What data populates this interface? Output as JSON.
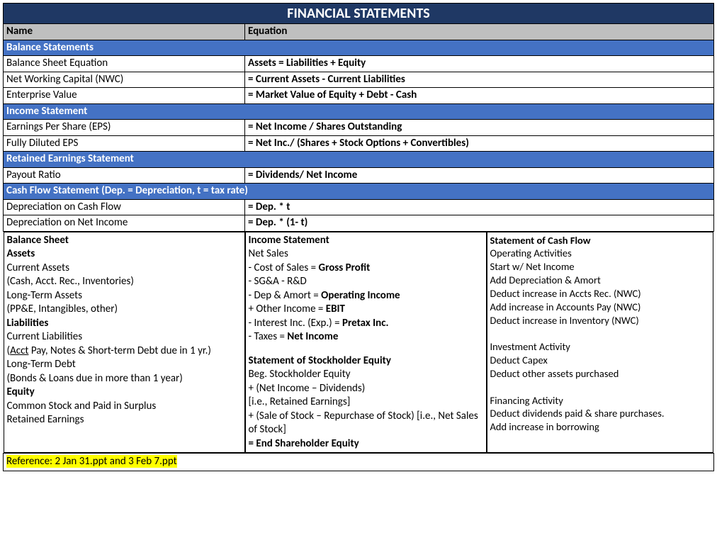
{
  "colors": {
    "title_bg": "#1f3864",
    "header_bg": "#bfbfbf",
    "section_bg": "#4472c4",
    "highlight_bg": "#ffff00",
    "border": "#000000",
    "text_light": "#ffffff",
    "text_dark": "#000000"
  },
  "title": "FINANCIAL STATEMENTS",
  "columns": {
    "name": "Name",
    "equation": "Equation"
  },
  "sections": [
    {
      "heading": "Balance Statements",
      "rows": [
        {
          "name": "Balance Sheet Equation",
          "equation": "Assets = Liabilities + Equity"
        },
        {
          "name": "Net Working Capital (NWC)",
          "equation": "= Current Assets - Current Liabilities"
        },
        {
          "name": "Enterprise Value",
          "equation": "= Market Value of Equity + Debt - Cash"
        }
      ]
    },
    {
      "heading": "Income Statement",
      "rows": [
        {
          "name": "Earnings Per Share (EPS)",
          "equation": "= Net Income / Shares Outstanding"
        },
        {
          "name": "Fully Diluted EPS",
          "equation": "= Net Inc./ (Shares + Stock Options + Convertibles)"
        }
      ]
    },
    {
      "heading": "Retained Earnings Statement",
      "rows": [
        {
          "name": "Payout Ratio",
          "equation": "= Dividends/ Net Income"
        }
      ]
    },
    {
      "heading": "Cash Flow Statement (Dep. = Depreciation, t = tax rate)",
      "rows": [
        {
          "name": "Depreciation on Cash Flow",
          "equation": " = Dep. * t"
        },
        {
          "name": "Depreciation on Net Income",
          "equation": " = Dep. * (1- t)"
        }
      ]
    }
  ],
  "summary": {
    "balance_sheet": {
      "title": "Balance Sheet",
      "assets_h": "Assets",
      "assets_1": "Current Assets",
      "assets_2": "(Cash, Acct. Rec., Inventories)",
      "assets_3": "Long-Term Assets",
      "assets_4": "(PP&E, Intangibles, other)",
      "liab_h": "Liabilities",
      "liab_1": "Current Liabilities",
      "liab_2a": "(",
      "liab_2u": "Acct",
      "liab_2b": " Pay, Notes & Short-term Debt due in 1 yr.)",
      "liab_3": "Long-Term Debt",
      "liab_4": "(Bonds & Loans due in more than 1 year)",
      "eq_h": "Equity",
      "eq_1": "Common Stock and Paid in Surplus",
      "eq_2": "Retained Earnings"
    },
    "income_statement": {
      "title": "Income Statement",
      "l1": "Net Sales",
      "l2a": "- Cost of Sales = ",
      "l2b": "Gross Profit",
      "l3": "- SG&A - R&D",
      "l4a": "- Dep & Amort = ",
      "l4b": "Operating Income",
      "l5a": "+ Other Income = ",
      "l5b": "EBIT",
      "l6a": "- Interest Inc. (Exp.) = ",
      "l6b": "Pretax Inc.",
      "l7a": "- Taxes = ",
      "l7b": "Net Income"
    },
    "stockholder": {
      "title": "Statement of Stockholder Equity",
      "l1": "Beg. Stockholder Equity",
      "l2": "+ (Net Income – Dividends)",
      "l3": "[i.e., Retained Earnings]",
      "l4": "+ (Sale of Stock – Repurchase of Stock) [i.e., Net Sales of Stock]",
      "l5": "= End Shareholder Equity"
    },
    "cash_flow": {
      "title": "Statement of Cash Flow",
      "op_h": "Operating Activities",
      "op_1": "Start w/ Net Income",
      "op_2": "Add Depreciation & Amort",
      "op_3": "Deduct increase in Accts Rec. (NWC)",
      "op_4": "Add increase in Accounts Pay (NWC)",
      "op_5": "Deduct increase in Inventory (NWC)",
      "inv_h": "Investment Activity",
      "inv_1": "Deduct Capex",
      "inv_2": "Deduct other assets purchased",
      "fin_h": "Financing Activity",
      "fin_1": "Deduct dividends paid & share purchases.",
      "fin_2": "Add increase in borrowing"
    }
  },
  "reference": "Reference: 2 Jan 31.ppt and 3 Feb 7.ppt"
}
